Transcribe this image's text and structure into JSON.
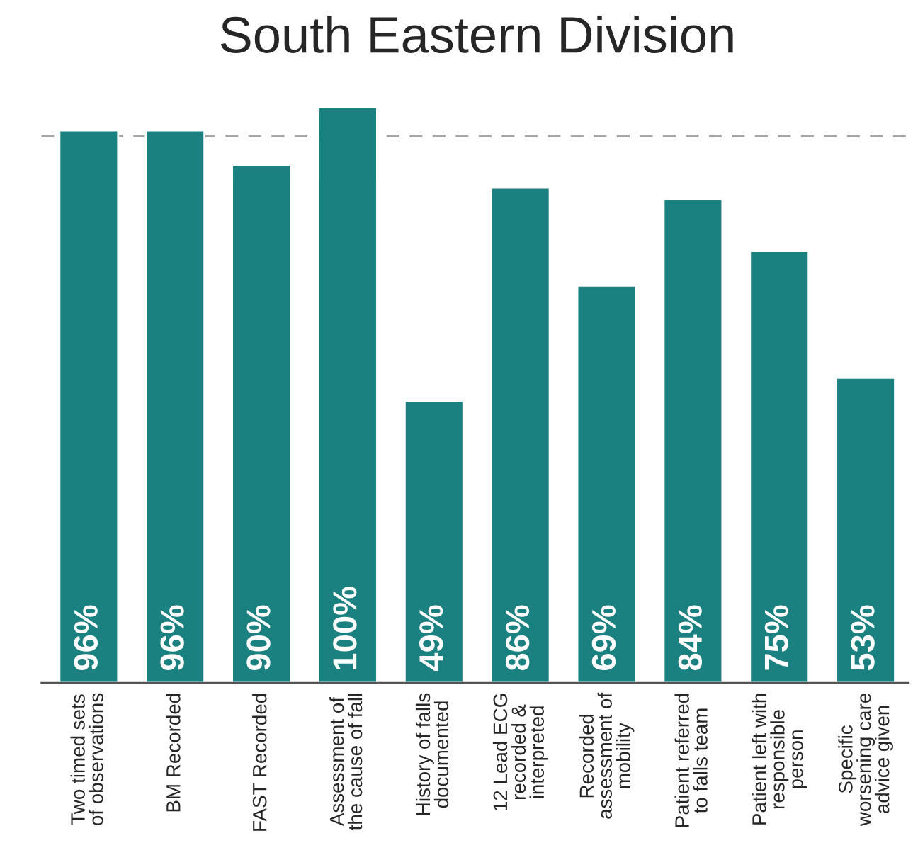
{
  "chart_data": {
    "type": "bar",
    "title": "South Eastern Division",
    "categories": [
      "Two timed sets\nof observations",
      "BM Recorded",
      "FAST Recorded",
      "Assessment of\nthe cause of fall",
      "History of falls\ndocumented",
      "12 Lead ECG\nrecorded &\ninterpreted",
      "Recorded\nassessment of\nmobility",
      "Patient referred\nto falls team",
      "Patient left with\nresponsible\nperson",
      "Specific\nworsening care\nadvice given"
    ],
    "values": [
      96,
      96,
      90,
      100,
      49,
      86,
      69,
      84,
      75,
      53
    ],
    "value_labels": [
      "96%",
      "96%",
      "90%",
      "100%",
      "49%",
      "86%",
      "69%",
      "84%",
      "75%",
      "53%"
    ],
    "color": "#1b8080",
    "ref_lines": [
      {
        "axis": "y",
        "value": 95,
        "color": "#a6a6a6",
        "line_style": "dashed"
      }
    ],
    "grid": false,
    "legend": false
  }
}
